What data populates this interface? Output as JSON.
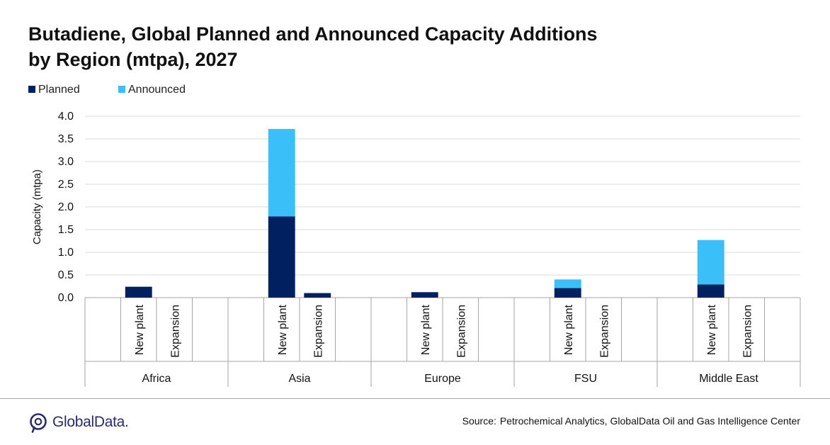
{
  "title_line1": "Butadiene, Global Planned and Announced Capacity Additions",
  "title_line2": "by Region (mtpa), 2027",
  "source_label": "Source:",
  "source_text": "Petrochemical Analytics, GlobalData Oil and Gas Intelligence Center",
  "logo_text": "GlobalData.",
  "colors": {
    "planned": "#002060",
    "announced": "#3BBFF8",
    "grid": "#d9d9d9",
    "axis": "#a6a6a6"
  },
  "chart_data": {
    "type": "bar",
    "stacked": true,
    "ylabel": "Capacity (mtpa)",
    "ylim": [
      0,
      4.0
    ],
    "yticks": [
      "0.0",
      "0.5",
      "1.0",
      "1.5",
      "2.0",
      "2.5",
      "3.0",
      "3.5",
      "4.0"
    ],
    "grid": true,
    "legend_position": "top-left",
    "groups": [
      "Africa",
      "Asia",
      "Europe",
      "FSU",
      "Middle East"
    ],
    "categories": [
      "New plant",
      "Expansion"
    ],
    "series": [
      {
        "name": "Planned",
        "values": [
          [
            0.24,
            0.0
          ],
          [
            1.79,
            0.1
          ],
          [
            0.12,
            0.0
          ],
          [
            0.21,
            0.0
          ],
          [
            0.29,
            0.0
          ]
        ]
      },
      {
        "name": "Announced",
        "values": [
          [
            0.0,
            0.0
          ],
          [
            1.93,
            0.0
          ],
          [
            0.0,
            0.0
          ],
          [
            0.19,
            0.0
          ],
          [
            0.98,
            0.0
          ]
        ]
      }
    ]
  }
}
